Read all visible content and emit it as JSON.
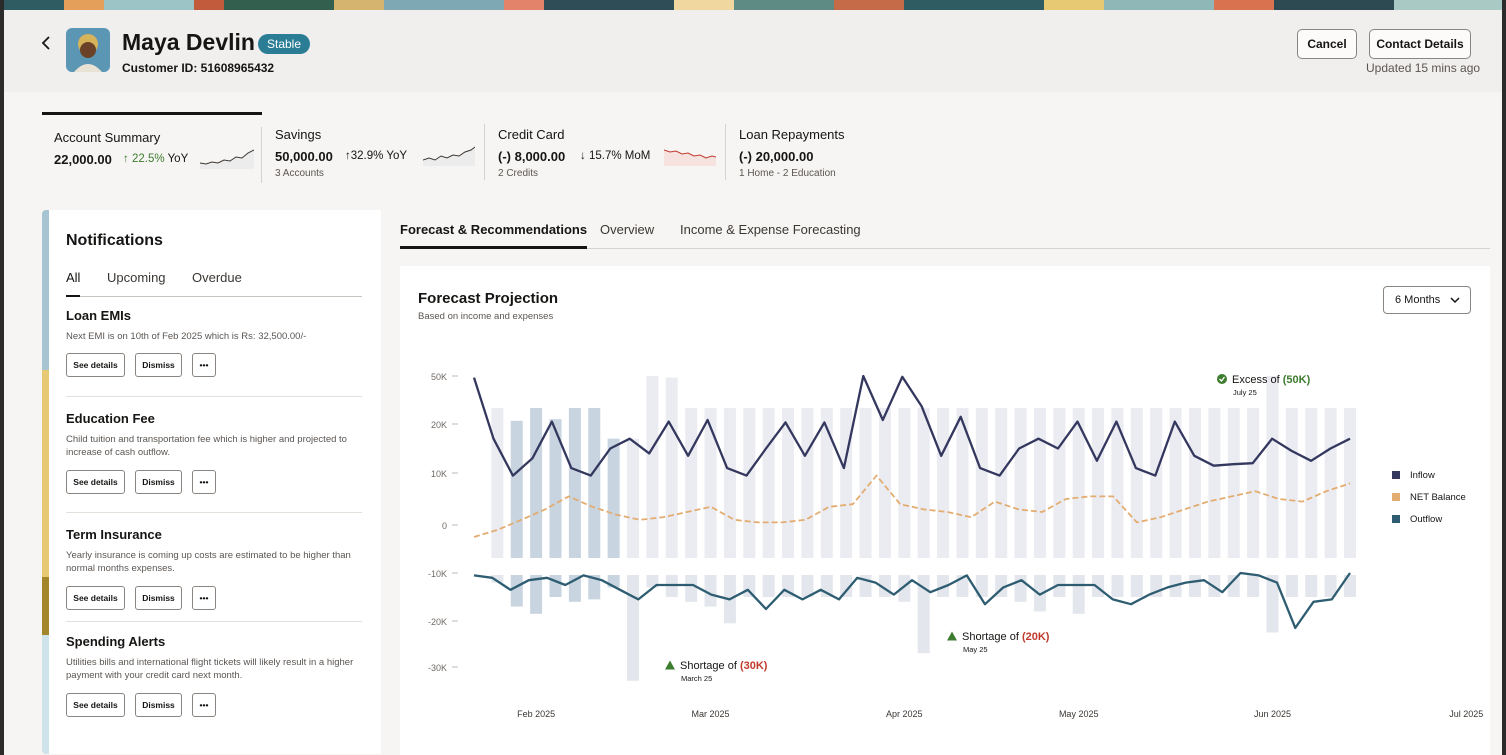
{
  "header": {
    "customer_name": "Maya Devlin",
    "status": "Stable",
    "customer_id": "Customer ID: 51608965432",
    "cancel_label": "Cancel",
    "contact_label": "Contact Details",
    "updated": "Updated 15 mins ago",
    "icons": {
      "back": "chevron-left-icon"
    },
    "colors": {
      "status_badge": "#2a7d95"
    }
  },
  "summary": [
    {
      "title": "Account Summary",
      "value": "22,000.00",
      "change": "22.5%",
      "period": "YoY",
      "direction": "up",
      "sub": ""
    },
    {
      "title": "Savings",
      "value": "50,000.00",
      "change": "32.9%",
      "period": "YoY",
      "direction": "up",
      "sub": "3 Accounts"
    },
    {
      "title": "Credit Card",
      "value": "(-) 8,000.00",
      "change": "15.7%",
      "period": "MoM",
      "direction": "down",
      "sub": "2 Credits"
    },
    {
      "title": "Loan Repayments",
      "value": "(-) 20,000.00",
      "change": "",
      "period": "",
      "direction": "",
      "sub": "1 Home - 2 Education"
    }
  ],
  "notifications": {
    "title": "Notifications",
    "tabs": [
      "All",
      "Upcoming",
      "Overdue"
    ],
    "active_tab": "All",
    "items": [
      {
        "title": "Loan EMIs",
        "desc": "Next EMI is on 10th of Feb 2025 which is Rs: 32,500.00/-",
        "accent": "#a6c4d1"
      },
      {
        "title": "Education Fee",
        "desc": "Child tuition and transportation fee which is higher and projected to increase of cash outflow.",
        "accent": "#e7c873"
      },
      {
        "title": "Term Insurance",
        "desc": "Yearly insurance is coming up costs are estimated to be higher than normal months expenses.",
        "accent": "#a3862b"
      },
      {
        "title": "Spending Alerts",
        "desc": "Utilities bills and international flight tickets will likely result in a higher payment with your credit card next month.",
        "accent": "#cfe3ea"
      }
    ],
    "see_details_label": "See details",
    "dismiss_label": "Dismiss",
    "more_label": "•••"
  },
  "main_tabs": [
    "Forecast & Recommendations",
    "Overview",
    "Income & Expense Forecasting"
  ],
  "active_main_tab": "Forecast & Recommendations",
  "forecast": {
    "title": "Forecast Projection",
    "subtitle": "Based on income and expenses",
    "range": "6 Months"
  },
  "chart_data": {
    "type": "line",
    "title": "Forecast Projection",
    "subtitle": "Based on income and expenses",
    "ylim": [
      -32000,
      55000
    ],
    "y_ticks": [
      -30000,
      -20000,
      -10000,
      0,
      10000,
      20000,
      50000
    ],
    "y_tick_labels": [
      "-30K",
      "-20K",
      "-10K",
      "0",
      "10K",
      "20K",
      "50K"
    ],
    "x_ticks": [
      3,
      12,
      22,
      31,
      41,
      51
    ],
    "x_tick_labels": [
      "Feb 2025",
      "Mar 2025",
      "Apr 2025",
      "May 2025",
      "Jun 2025",
      "Jul 2025"
    ],
    "legend": [
      "Inflow",
      "NET Balance",
      "Outflow"
    ],
    "legend_position": "right",
    "colors": {
      "inflow": "#34385e",
      "net": "#e3ad71",
      "outflow": "#2e5d72",
      "bar_pos": "#ebebf2",
      "bar_neg": "#e3e6ec",
      "bar_highlight": "#c8d4e0",
      "excess": "#3e7c2f",
      "shortage": "#c0392b"
    },
    "series": [
      {
        "name": "Inflow",
        "values": [
          49000,
          17000,
          9500,
          13000,
          21500,
          11000,
          9500,
          15000,
          17000,
          14000,
          21500,
          13500,
          22500,
          11000,
          9500,
          15000,
          21000,
          13500,
          21000,
          11000,
          50000,
          22500,
          49500,
          31000,
          13500,
          24500,
          11000,
          9500,
          15000,
          17000,
          15000,
          21500,
          12500,
          21500,
          11000,
          9500,
          21500,
          13500,
          11500,
          11800,
          12000,
          17000,
          14500,
          12500,
          15000,
          17000
        ]
      },
      {
        "name": "NET Balance",
        "values": [
          -2500,
          -1000,
          1000,
          3000,
          5500,
          3500,
          2000,
          1000,
          1500,
          2500,
          3500,
          1000,
          500,
          500,
          1000,
          3500,
          4000,
          9500,
          4000,
          3000,
          2500,
          1500,
          4500,
          3000,
          2500,
          5000,
          5500,
          5500,
          500,
          1500,
          3000,
          4500,
          5500,
          6500,
          5000,
          4500,
          6500,
          8000
        ]
      },
      {
        "name": "Outflow",
        "values": [
          -10500,
          -11000,
          -13500,
          -11500,
          -11000,
          -12500,
          -10500,
          -11500,
          -13500,
          -15500,
          -12500,
          -12500,
          -12500,
          -14500,
          -15500,
          -13500,
          -17500,
          -13500,
          -15500,
          -13500,
          -15500,
          -11000,
          -12000,
          -14500,
          -11500,
          -14000,
          -12500,
          -10500,
          -16500,
          -13000,
          -11500,
          -14500,
          -12500,
          -12500,
          -12500,
          -15500,
          -16500,
          -14500,
          -13000,
          -12000,
          -11500,
          -14000,
          -10000,
          -10500,
          -12000,
          -21500,
          -16000,
          -15500,
          -10000
        ]
      }
    ],
    "bars": {
      "positive": [
        0,
        30000,
        22000,
        30000,
        23000,
        30000,
        30000,
        17000,
        17000,
        50000,
        49000,
        30000,
        30000,
        30000,
        30000,
        30000,
        30000,
        30000,
        30000,
        30000,
        30000,
        30000,
        30000,
        30000,
        30000,
        30000,
        30000,
        30000,
        30000,
        30000,
        30000,
        30000,
        30000,
        30000,
        30000,
        30000,
        30000,
        30000,
        30000,
        30000,
        30000,
        50000,
        30000,
        30000,
        30000,
        30000
      ],
      "negative": [
        0,
        -12000,
        -17000,
        -18500,
        -15000,
        -16000,
        -15500,
        -13000,
        -33000,
        -13000,
        -15000,
        -16000,
        -17000,
        -20500,
        -15000,
        -15000,
        -15000,
        -15000,
        -15000,
        -15000,
        -15000,
        -15000,
        -16000,
        -27000,
        -15000,
        -15000,
        -15000,
        -15000,
        -16000,
        -18000,
        -15000,
        -18500,
        -15000,
        -15000,
        -15000,
        -15000,
        -15000,
        -15000,
        -15000,
        -15000,
        -15000,
        -22500,
        -15000,
        -15000,
        -15000,
        -15000
      ]
    },
    "annotations": [
      {
        "label": "Excess of",
        "amount": "(50K)",
        "date": "July 25",
        "kind": "excess"
      },
      {
        "label": "Shortage of",
        "amount": "(30K)",
        "date": "March 25",
        "kind": "shortage"
      },
      {
        "label": "Shortage of",
        "amount": "(20K)",
        "date": "May 25",
        "kind": "shortage"
      }
    ]
  }
}
